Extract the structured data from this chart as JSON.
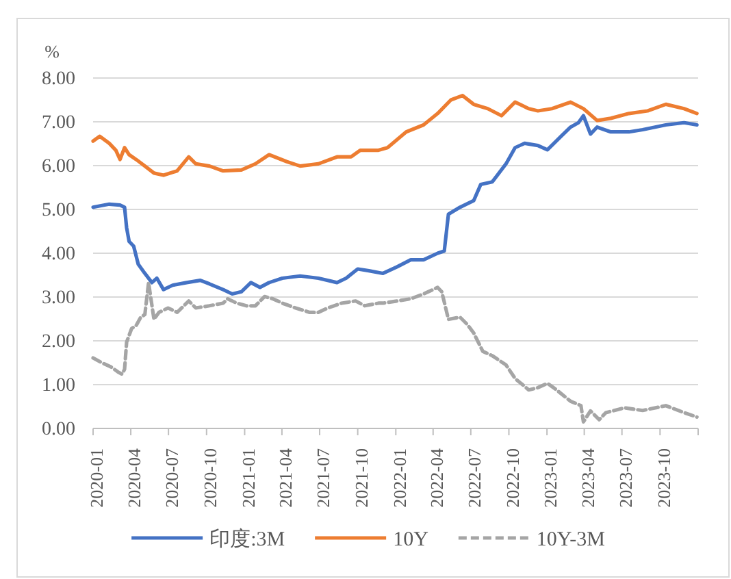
{
  "chart_data": {
    "type": "line",
    "ylabel": "%",
    "xlim": [
      "2020-01-01",
      "2024-01-01"
    ],
    "xticks": [
      "2020-01",
      "2020-04",
      "2020-07",
      "2020-10",
      "2021-01",
      "2021-04",
      "2021-07",
      "2021-10",
      "2022-01",
      "2022-04",
      "2022-07",
      "2022-10",
      "2023-01",
      "2023-04",
      "2023-07",
      "2023-10",
      {
        "value": "2024-01",
        "label": null
      }
    ],
    "ylim": [
      0,
      8
    ],
    "yticks": [
      {
        "value": 0,
        "label": "0.00"
      },
      {
        "value": 1,
        "label": "1.00"
      },
      {
        "value": 2,
        "label": "2.00"
      },
      {
        "value": 3,
        "label": "3.00"
      },
      {
        "value": 4,
        "label": "4.00"
      },
      {
        "value": 5,
        "label": "5.00"
      },
      {
        "value": 6,
        "label": "6.00"
      },
      {
        "value": 7,
        "label": "7.00"
      },
      {
        "value": 8,
        "label": "8.00"
      }
    ],
    "grid": "y",
    "legend": "bottom",
    "series": [
      {
        "name": "印度:3M",
        "color": "#4472c4",
        "x": [
          "2020-01-01",
          "2020-02-09",
          "2020-03-06",
          "2020-03-17",
          "2020-03-22",
          "2020-03-28",
          "2020-04-08",
          "2020-04-19",
          "2020-05-05",
          "2020-05-22",
          "2020-06-03",
          "2020-06-19",
          "2020-07-11",
          "2020-08-14",
          "2020-09-16",
          "2020-10-08",
          "2020-11-10",
          "2020-12-02",
          "2020-12-24",
          "2021-01-16",
          "2021-02-07",
          "2021-03-01",
          "2021-04-02",
          "2021-05-15",
          "2021-06-28",
          "2021-08-12",
          "2021-09-03",
          "2021-10-01",
          "2021-10-28",
          "2021-12-01",
          "2022-01-04",
          "2022-02-06",
          "2022-03-09",
          "2022-04-12",
          "2022-04-28",
          "2022-05-08",
          "2022-06-05",
          "2022-07-08",
          "2022-07-25",
          "2022-08-22",
          "2022-09-24",
          "2022-10-16",
          "2022-11-08",
          "2022-12-10",
          "2023-01-02",
          "2023-02-04",
          "2023-02-27",
          "2023-03-18",
          "2023-03-30",
          "2023-04-16",
          "2023-05-02",
          "2023-06-04",
          "2023-07-18",
          "2023-08-20",
          "2023-10-15",
          "2023-11-28",
          "2023-12-29"
        ],
        "values": [
          5.05,
          5.12,
          5.1,
          5.05,
          4.58,
          4.27,
          4.16,
          3.75,
          3.54,
          3.33,
          3.43,
          3.17,
          3.27,
          3.33,
          3.38,
          3.3,
          3.17,
          3.07,
          3.12,
          3.33,
          3.22,
          3.33,
          3.43,
          3.48,
          3.43,
          3.33,
          3.43,
          3.64,
          3.6,
          3.54,
          3.69,
          3.85,
          3.85,
          4.0,
          4.05,
          4.89,
          5.05,
          5.2,
          5.57,
          5.63,
          6.04,
          6.41,
          6.51,
          6.46,
          6.36,
          6.67,
          6.88,
          6.98,
          7.14,
          6.72,
          6.88,
          6.77,
          6.77,
          6.82,
          6.93,
          6.98,
          6.93
        ]
      },
      {
        "name": "10Y",
        "color": "#ed7d31",
        "x": [
          "2020-01-01",
          "2020-01-17",
          "2020-02-09",
          "2020-02-25",
          "2020-03-06",
          "2020-03-17",
          "2020-03-28",
          "2020-04-14",
          "2020-05-05",
          "2020-05-27",
          "2020-06-19",
          "2020-07-22",
          "2020-08-19",
          "2020-09-05",
          "2020-10-08",
          "2020-11-10",
          "2020-12-24",
          "2021-01-27",
          "2021-03-01",
          "2021-04-13",
          "2021-05-15",
          "2021-06-28",
          "2021-08-12",
          "2021-09-15",
          "2021-10-07",
          "2021-11-20",
          "2021-12-12",
          "2022-01-26",
          "2022-03-09",
          "2022-04-12",
          "2022-05-14",
          "2022-06-11",
          "2022-07-08",
          "2022-08-11",
          "2022-09-13",
          "2022-10-16",
          "2022-11-18",
          "2022-12-10",
          "2023-01-13",
          "2023-02-27",
          "2023-03-30",
          "2023-05-02",
          "2023-06-04",
          "2023-07-18",
          "2023-09-01",
          "2023-10-15",
          "2023-11-28",
          "2023-12-29"
        ],
        "values": [
          6.56,
          6.67,
          6.51,
          6.35,
          6.14,
          6.41,
          6.25,
          6.14,
          5.99,
          5.83,
          5.78,
          5.88,
          6.2,
          6.04,
          5.99,
          5.88,
          5.9,
          6.04,
          6.25,
          6.09,
          5.99,
          6.04,
          6.2,
          6.2,
          6.35,
          6.35,
          6.41,
          6.77,
          6.93,
          7.19,
          7.5,
          7.6,
          7.4,
          7.3,
          7.14,
          7.45,
          7.3,
          7.25,
          7.3,
          7.45,
          7.3,
          7.03,
          7.08,
          7.19,
          7.25,
          7.4,
          7.3,
          7.19
        ]
      },
      {
        "name": "10Y-3M",
        "color": "#a5a5a5",
        "line_style": "dashed",
        "x": [
          "2020-01-01",
          "2020-01-22",
          "2020-02-14",
          "2020-03-01",
          "2020-03-11",
          "2020-03-17",
          "2020-03-22",
          "2020-04-03",
          "2020-04-14",
          "2020-04-25",
          "2020-05-05",
          "2020-05-14",
          "2020-05-27",
          "2020-06-08",
          "2020-06-30",
          "2020-07-22",
          "2020-08-19",
          "2020-09-05",
          "2020-10-08",
          "2020-11-10",
          "2020-11-21",
          "2020-12-13",
          "2021-01-05",
          "2021-01-27",
          "2021-02-18",
          "2021-03-10",
          "2021-04-02",
          "2021-05-04",
          "2021-06-07",
          "2021-06-28",
          "2021-07-21",
          "2021-08-23",
          "2021-09-26",
          "2021-10-18",
          "2021-11-20",
          "2021-12-01",
          "2022-01-04",
          "2022-02-06",
          "2022-03-09",
          "2022-04-12",
          "2022-04-22",
          "2022-05-08",
          "2022-06-05",
          "2022-06-22",
          "2022-07-08",
          "2022-07-30",
          "2022-08-22",
          "2022-09-24",
          "2022-10-16",
          "2022-11-18",
          "2022-12-10",
          "2023-01-02",
          "2023-01-24",
          "2023-02-27",
          "2023-03-24",
          "2023-03-30",
          "2023-04-16",
          "2023-05-07",
          "2023-05-23",
          "2023-07-07",
          "2023-08-20",
          "2023-10-15",
          "2023-11-28",
          "2023-12-29"
        ],
        "values": [
          1.61,
          1.5,
          1.4,
          1.29,
          1.24,
          1.35,
          1.97,
          2.28,
          2.35,
          2.54,
          2.6,
          3.33,
          2.49,
          2.65,
          2.75,
          2.65,
          2.91,
          2.75,
          2.8,
          2.86,
          2.96,
          2.86,
          2.8,
          2.8,
          3.01,
          2.96,
          2.86,
          2.75,
          2.65,
          2.65,
          2.75,
          2.86,
          2.91,
          2.8,
          2.86,
          2.86,
          2.91,
          2.96,
          3.07,
          3.22,
          3.12,
          2.49,
          2.54,
          2.38,
          2.18,
          1.76,
          1.66,
          1.45,
          1.14,
          0.88,
          0.93,
          1.03,
          0.88,
          0.62,
          0.52,
          0.15,
          0.4,
          0.2,
          0.36,
          0.47,
          0.41,
          0.52,
          0.36,
          0.26
        ]
      }
    ]
  }
}
